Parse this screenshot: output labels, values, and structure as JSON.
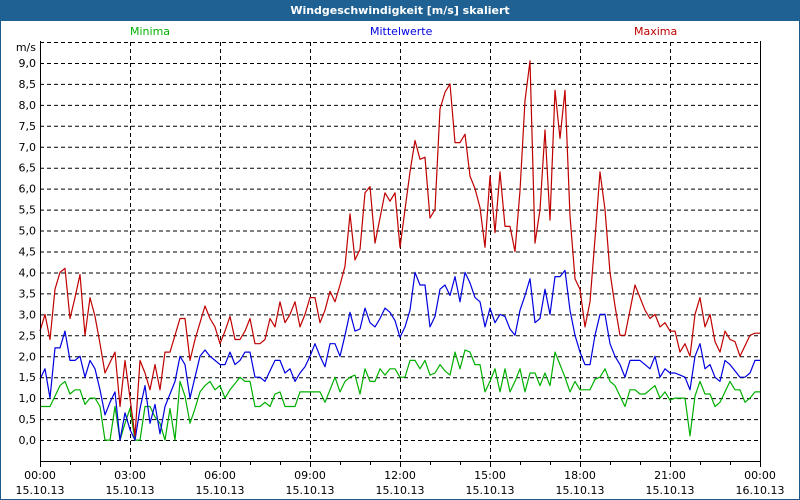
{
  "window": {
    "title": "Windgeschwindigkeit [m/s] skaliert"
  },
  "chart_data": {
    "type": "line",
    "title": "Windgeschwindigkeit [m/s] skaliert",
    "ylabel": "m/s",
    "xlabel": "",
    "ylim": [
      -0.5,
      9.5
    ],
    "xlim_hours": [
      0,
      24
    ],
    "grid": true,
    "legend_placement": "top",
    "yticks": [
      {
        "v": 9.0,
        "label": "9,0"
      },
      {
        "v": 8.5,
        "label": "8,5"
      },
      {
        "v": 8.0,
        "label": "8,0"
      },
      {
        "v": 7.5,
        "label": "7,5"
      },
      {
        "v": 7.0,
        "label": "7,0"
      },
      {
        "v": 6.5,
        "label": "6,5"
      },
      {
        "v": 6.0,
        "label": "6,0"
      },
      {
        "v": 5.5,
        "label": "5,5"
      },
      {
        "v": 5.0,
        "label": "5,0"
      },
      {
        "v": 4.5,
        "label": "4,5"
      },
      {
        "v": 4.0,
        "label": "4,0"
      },
      {
        "v": 3.5,
        "label": "3,5"
      },
      {
        "v": 3.0,
        "label": "3,0"
      },
      {
        "v": 2.5,
        "label": "2,5"
      },
      {
        "v": 2.0,
        "label": "2,0"
      },
      {
        "v": 1.5,
        "label": "1,5"
      },
      {
        "v": 1.0,
        "label": "1,0"
      },
      {
        "v": 0.5,
        "label": "0,5"
      },
      {
        "v": 0.0,
        "label": "0,0"
      }
    ],
    "xticks": [
      {
        "h": 0,
        "time": "00:00",
        "date": "15.10.13"
      },
      {
        "h": 3,
        "time": "03:00",
        "date": "15.10.13"
      },
      {
        "h": 6,
        "time": "06:00",
        "date": "15.10.13"
      },
      {
        "h": 9,
        "time": "09:00",
        "date": "15.10.13"
      },
      {
        "h": 12,
        "time": "12:00",
        "date": "15.10.13"
      },
      {
        "h": 15,
        "time": "15:00",
        "date": "15.10.13"
      },
      {
        "h": 18,
        "time": "18:00",
        "date": "15.10.13"
      },
      {
        "h": 21,
        "time": "21:00",
        "date": "15.10.13"
      },
      {
        "h": 24,
        "time": "00:00",
        "date": "16.10.13"
      }
    ],
    "sample_interval_minutes": 10,
    "series": [
      {
        "name": "Minima",
        "color": "#00b000",
        "values": [
          0.8,
          0.8,
          0.8,
          1.05,
          1.3,
          1.4,
          1.1,
          1.2,
          1.2,
          0.85,
          1.0,
          1.0,
          0.8,
          0.0,
          0.0,
          0.8,
          0.0,
          0.4,
          0.75,
          0.0,
          0.0,
          0.8,
          0.8,
          0.55,
          0.4,
          0.0,
          0.75,
          0.0,
          1.4,
          1.05,
          0.4,
          0.75,
          1.15,
          1.3,
          1.4,
          1.2,
          1.3,
          1.0,
          1.2,
          1.35,
          1.5,
          1.4,
          1.4,
          0.8,
          0.8,
          0.9,
          0.8,
          1.1,
          1.15,
          0.8,
          0.8,
          0.8,
          1.15,
          1.15,
          1.15,
          1.15,
          1.15,
          0.9,
          1.2,
          1.5,
          1.15,
          1.4,
          1.5,
          1.55,
          1.1,
          1.7,
          1.4,
          1.4,
          1.7,
          1.55,
          1.7,
          1.7,
          1.5,
          1.5,
          1.9,
          1.9,
          1.7,
          1.9,
          1.55,
          1.6,
          1.8,
          1.65,
          1.55,
          2.1,
          1.7,
          2.15,
          2.1,
          1.8,
          1.8,
          1.15,
          1.4,
          1.7,
          1.15,
          1.7,
          1.15,
          1.4,
          1.7,
          1.15,
          1.6,
          1.6,
          1.3,
          1.6,
          1.3,
          2.1,
          1.8,
          1.5,
          1.15,
          1.4,
          1.2,
          1.2,
          1.2,
          1.45,
          1.5,
          1.7,
          1.4,
          1.3,
          1.05,
          0.8,
          1.2,
          1.2,
          1.1,
          1.1,
          1.2,
          1.3,
          1.0,
          1.15,
          0.95,
          1.0,
          1.0,
          1.0,
          0.1,
          1.05,
          1.4,
          1.1,
          1.1,
          0.8,
          0.9,
          1.15,
          1.4,
          1.2,
          1.2,
          0.9,
          1.0,
          1.15,
          1.15
        ]
      },
      {
        "name": "Mittelwerte",
        "color": "#0000e0",
        "values": [
          1.45,
          1.7,
          1.0,
          2.2,
          2.2,
          2.6,
          1.9,
          1.9,
          2.0,
          1.5,
          1.9,
          1.7,
          1.2,
          0.6,
          0.9,
          1.15,
          0.0,
          0.65,
          0.25,
          0.0,
          0.75,
          1.3,
          0.4,
          0.85,
          0.15,
          0.8,
          1.1,
          1.4,
          2.0,
          1.8,
          1.0,
          1.5,
          2.0,
          2.15,
          2.0,
          1.9,
          1.8,
          1.8,
          2.1,
          1.8,
          1.9,
          2.1,
          2.1,
          1.5,
          1.5,
          1.4,
          1.65,
          1.9,
          1.9,
          1.6,
          1.7,
          1.4,
          1.6,
          1.75,
          2.0,
          2.3,
          2.0,
          1.75,
          2.3,
          2.3,
          2.0,
          2.5,
          3.05,
          2.6,
          2.65,
          3.15,
          2.8,
          2.7,
          2.9,
          3.15,
          3.05,
          2.85,
          2.45,
          2.7,
          3.1,
          4.0,
          3.7,
          3.7,
          2.7,
          2.95,
          3.6,
          3.7,
          3.45,
          3.9,
          3.3,
          4.0,
          3.75,
          3.4,
          3.3,
          2.7,
          3.15,
          2.8,
          3.0,
          2.95,
          2.65,
          2.5,
          3.1,
          3.45,
          3.85,
          2.8,
          2.9,
          3.6,
          3.0,
          3.9,
          3.9,
          4.05,
          3.1,
          2.5,
          2.1,
          1.8,
          1.8,
          2.5,
          3.0,
          3.0,
          2.3,
          2.0,
          1.8,
          1.5,
          1.9,
          1.9,
          1.9,
          1.8,
          1.7,
          2.0,
          1.5,
          1.7,
          1.6,
          1.6,
          1.55,
          1.5,
          1.2,
          2.0,
          2.3,
          1.7,
          1.8,
          1.5,
          1.4,
          1.9,
          1.8,
          1.65,
          1.5,
          1.5,
          1.6,
          1.9,
          1.9
        ]
      },
      {
        "name": "Maxima",
        "color": "#c00000",
        "values": [
          2.6,
          3.0,
          2.4,
          3.6,
          4.0,
          4.1,
          2.9,
          3.4,
          3.95,
          2.5,
          3.4,
          2.95,
          2.3,
          1.6,
          1.85,
          2.1,
          0.8,
          1.9,
          1.0,
          0.1,
          1.9,
          1.6,
          1.2,
          1.8,
          1.2,
          2.1,
          2.1,
          2.5,
          2.9,
          2.9,
          1.9,
          2.4,
          2.8,
          3.2,
          2.9,
          2.7,
          2.3,
          2.6,
          2.95,
          2.4,
          2.4,
          2.6,
          2.9,
          2.3,
          2.3,
          2.4,
          2.9,
          2.7,
          3.3,
          2.8,
          3.0,
          3.3,
          2.7,
          3.0,
          3.4,
          3.4,
          2.8,
          3.1,
          3.55,
          3.3,
          3.7,
          4.15,
          5.4,
          4.3,
          4.55,
          5.9,
          6.05,
          4.7,
          5.3,
          5.9,
          5.7,
          5.9,
          4.6,
          5.5,
          6.4,
          7.15,
          6.7,
          6.75,
          5.3,
          5.5,
          7.9,
          8.3,
          8.5,
          7.1,
          7.1,
          7.3,
          6.3,
          6.0,
          5.55,
          4.6,
          6.3,
          4.95,
          6.4,
          5.1,
          5.1,
          4.5,
          5.95,
          8.1,
          9.05,
          4.7,
          5.5,
          7.4,
          5.25,
          8.35,
          7.2,
          8.35,
          5.35,
          3.85,
          3.6,
          2.7,
          3.3,
          4.8,
          6.4,
          5.5,
          4.0,
          3.2,
          2.5,
          2.5,
          3.1,
          3.7,
          3.4,
          3.1,
          2.9,
          3.0,
          2.7,
          2.8,
          2.6,
          2.6,
          2.1,
          2.3,
          2.0,
          3.0,
          3.4,
          2.7,
          3.0,
          2.35,
          2.1,
          2.6,
          2.4,
          2.35,
          2.0,
          2.25,
          2.5,
          2.55,
          2.55
        ]
      }
    ]
  }
}
